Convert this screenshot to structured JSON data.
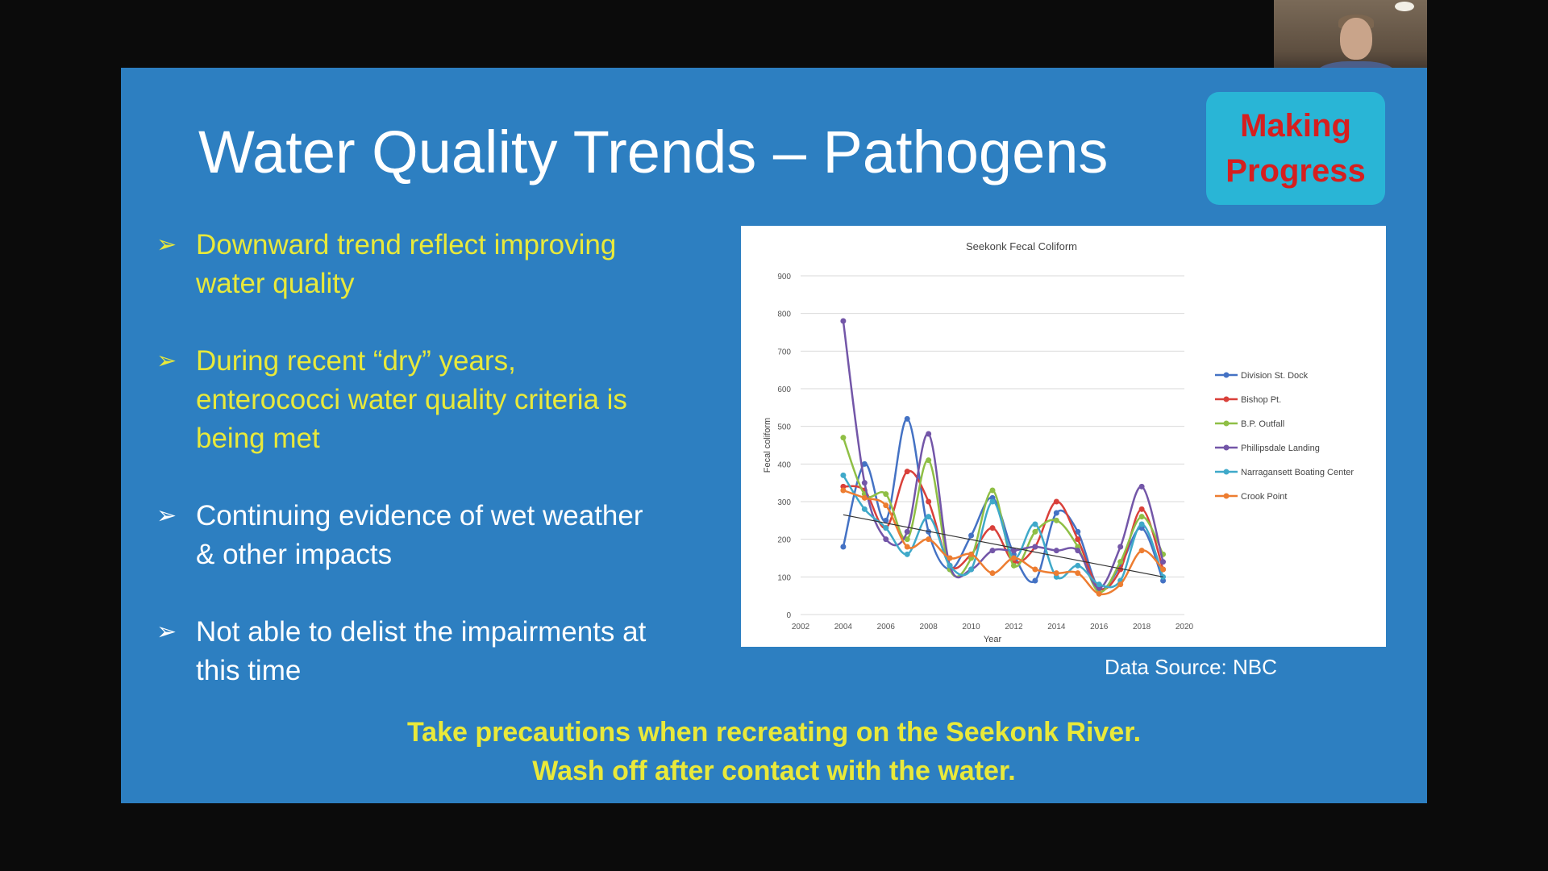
{
  "slide": {
    "title": "Water Quality Trends – Pathogens",
    "badge": {
      "line1": "Making",
      "line2": "Progress"
    },
    "bullets": [
      {
        "text_line1": "Downward trend reflect improving",
        "text_line2": "water quality",
        "color": "#e9e93a"
      },
      {
        "text_line1": "During recent “dry” years,",
        "text_line2": "enterococci water quality criteria is",
        "text_line3": "being met",
        "color": "#e9e93a"
      },
      {
        "text_line1": "Continuing evidence of wet weather",
        "text_line2": "& other impacts",
        "color": "#ffffff"
      },
      {
        "text_line1": "Not able to delist the impairments at",
        "text_line2": "this time",
        "color": "#ffffff"
      }
    ],
    "bullet_icon": "arrow-bullet-icon",
    "data_source": "Data Source: NBC",
    "footer_line1": "Take precautions when recreating on the Seekonk River.",
    "footer_line2": "Wash off after contact with the water."
  },
  "colors": {
    "slide_bg": "#2d7fc1",
    "badge_bg": "#29b5d6",
    "badge_text": "#d61f1f",
    "accent_yellow": "#e9e93a"
  },
  "chart_data": {
    "type": "line",
    "title": "Seekonk Fecal Coliform",
    "xlabel": "Year",
    "ylabel": "Fecal coliform",
    "xlim": [
      2002,
      2020
    ],
    "ylim": [
      0,
      900
    ],
    "xticks": [
      2002,
      2004,
      2006,
      2008,
      2010,
      2012,
      2014,
      2016,
      2018,
      2020
    ],
    "yticks": [
      0,
      100,
      200,
      300,
      400,
      500,
      600,
      700,
      800,
      900
    ],
    "grid": true,
    "legend_position": "right",
    "x": [
      2004,
      2005,
      2006,
      2007,
      2008,
      2009,
      2010,
      2011,
      2012,
      2013,
      2014,
      2015,
      2016,
      2017,
      2018,
      2019
    ],
    "series": [
      {
        "name": "Division St. Dock",
        "color": "#4472c4",
        "values": [
          180,
          400,
          250,
          520,
          220,
          120,
          210,
          310,
          160,
          90,
          270,
          220,
          70,
          130,
          230,
          90
        ]
      },
      {
        "name": "Bishop Pt.",
        "color": "#d9403a",
        "values": [
          340,
          330,
          230,
          380,
          300,
          130,
          160,
          230,
          140,
          180,
          300,
          200,
          70,
          120,
          280,
          120
        ]
      },
      {
        "name": "B.P. Outfall",
        "color": "#8fbf45",
        "values": [
          470,
          320,
          320,
          200,
          410,
          120,
          150,
          330,
          130,
          220,
          250,
          180,
          60,
          140,
          260,
          160
        ]
      },
      {
        "name": "Phillipsdale Landing",
        "color": "#7356a8",
        "values": [
          780,
          350,
          200,
          220,
          480,
          130,
          120,
          170,
          170,
          180,
          170,
          170,
          70,
          180,
          340,
          140
        ]
      },
      {
        "name": "Narragansett Boating Center",
        "color": "#3fa9c9",
        "values": [
          370,
          280,
          230,
          160,
          260,
          130,
          120,
          300,
          150,
          240,
          100,
          130,
          80,
          90,
          240,
          100
        ]
      },
      {
        "name": "Crook Point",
        "color": "#ed7d31",
        "values": [
          330,
          310,
          290,
          180,
          200,
          150,
          160,
          110,
          150,
          120,
          110,
          110,
          55,
          80,
          170,
          120
        ]
      }
    ],
    "trendline": {
      "x": [
        2004,
        2019
      ],
      "y": [
        265,
        100
      ],
      "color": "#333333"
    }
  }
}
